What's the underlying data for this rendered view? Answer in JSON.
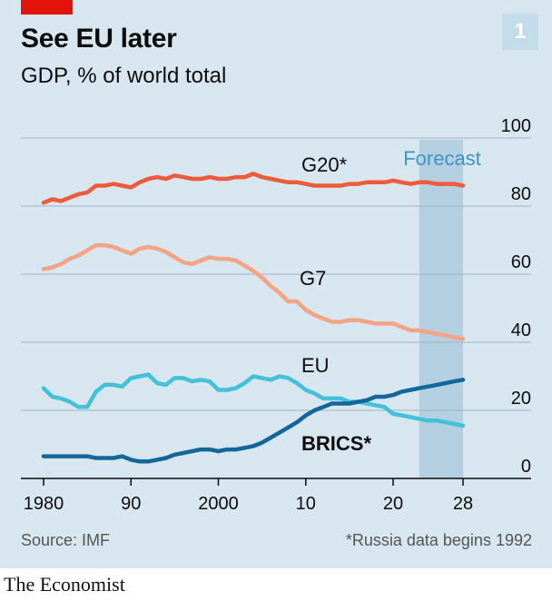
{
  "header": {
    "title": "See EU later",
    "subtitle": "GDP, % of world total",
    "chart_number": "1"
  },
  "footer": {
    "source": "Source: IMF",
    "note": "*Russia data begins 1992",
    "brand": "The Economist"
  },
  "colors": {
    "background": "#d7e6ef",
    "forecast_band": "#b3cfe0",
    "G20": "#ee5a3c",
    "G7": "#f5a385",
    "EU": "#42c1d8",
    "BRICS": "#136699",
    "brand_red": "#e3120b"
  },
  "chart_data": {
    "type": "line",
    "title": "See EU later",
    "subtitle": "GDP, % of world total",
    "ylim": [
      0,
      100
    ],
    "xlim": [
      1980,
      2028
    ],
    "y_ticks": [
      "0",
      "20",
      "40",
      "60",
      "80",
      "100"
    ],
    "x_ticks": [
      {
        "value": 1980,
        "label": "1980"
      },
      {
        "value": 1990,
        "label": "90"
      },
      {
        "value": 2000,
        "label": "2000"
      },
      {
        "value": 2010,
        "label": "10"
      },
      {
        "value": 2020,
        "label": "20"
      },
      {
        "value": 2028,
        "label": "28"
      }
    ],
    "y_axis_side": "right",
    "grid": true,
    "forecast": {
      "label": "Forecast",
      "start": 2023,
      "end": 2028
    },
    "x": [
      1980,
      1981,
      1982,
      1983,
      1984,
      1985,
      1986,
      1987,
      1988,
      1989,
      1990,
      1991,
      1992,
      1993,
      1994,
      1995,
      1996,
      1997,
      1998,
      1999,
      2000,
      2001,
      2002,
      2003,
      2004,
      2005,
      2006,
      2007,
      2008,
      2009,
      2010,
      2011,
      2012,
      2013,
      2014,
      2015,
      2016,
      2017,
      2018,
      2019,
      2020,
      2021,
      2022,
      2023,
      2024,
      2025,
      2026,
      2027,
      2028
    ],
    "series": [
      {
        "name": "G20*",
        "key": "G20",
        "values": [
          81,
          82,
          81.5,
          82.5,
          83.5,
          84,
          86,
          86,
          86.5,
          86,
          85.5,
          87,
          88,
          88.5,
          88,
          89,
          88.5,
          88,
          88,
          88.5,
          88,
          88,
          88.5,
          88.5,
          89.5,
          88.5,
          88,
          87.5,
          87,
          87,
          86.5,
          86,
          86,
          86,
          86,
          86.5,
          86.5,
          87,
          87,
          87,
          87.5,
          87,
          86.5,
          87,
          87,
          86.5,
          86.5,
          86.5,
          86
        ]
      },
      {
        "name": "G7",
        "key": "G7",
        "values": [
          61.5,
          62,
          63,
          64.5,
          65.5,
          67,
          68.5,
          68.5,
          68,
          67,
          66,
          67.5,
          68,
          67.5,
          66.5,
          65,
          63.5,
          63,
          64,
          65,
          64.5,
          64.5,
          64,
          62.5,
          61,
          59,
          56.5,
          54.5,
          52,
          52,
          49.5,
          48,
          47,
          46,
          46,
          46.5,
          46.5,
          46,
          45.5,
          45.5,
          45.5,
          44.5,
          43.5,
          43.5,
          43,
          42.5,
          42,
          41.5,
          41
        ]
      },
      {
        "name": "EU",
        "key": "EU",
        "values": [
          26.5,
          24,
          23.5,
          22.5,
          21,
          21,
          25.5,
          27.5,
          27.5,
          27,
          29.5,
          30,
          30.5,
          28,
          27.5,
          29.5,
          29.5,
          28.5,
          29,
          28.5,
          26,
          26,
          26.5,
          28,
          30,
          29.5,
          29,
          30,
          29.5,
          28,
          26,
          25,
          23.5,
          23.5,
          23.5,
          22.5,
          22.5,
          22,
          21.5,
          21,
          19,
          18.5,
          18,
          17.5,
          17,
          17,
          16.5,
          16,
          15.5
        ]
      },
      {
        "name": "BRICS*",
        "key": "BRICS",
        "values": [
          6.5,
          6.5,
          6.5,
          6.5,
          6.5,
          6.5,
          6,
          6,
          6,
          6.5,
          5.5,
          5,
          5,
          5.5,
          6,
          7,
          7.5,
          8,
          8.5,
          8.5,
          8,
          8.5,
          8.5,
          9,
          9.5,
          10.5,
          12,
          13.5,
          15,
          16.5,
          18.5,
          20,
          21,
          22,
          22,
          22,
          22.5,
          23,
          24,
          24,
          24.5,
          25.5,
          26,
          26.5,
          27,
          27.5,
          28,
          28.5,
          29
        ]
      }
    ]
  }
}
